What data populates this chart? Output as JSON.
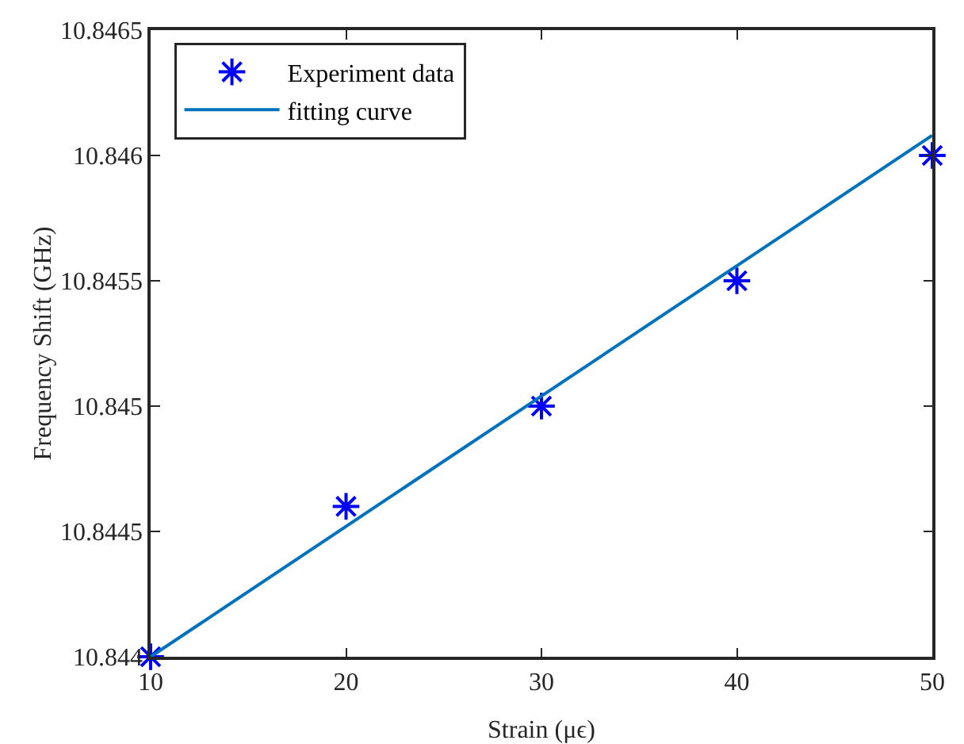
{
  "chart_data": {
    "type": "scatter",
    "xlabel": "Strain (μϵ)",
    "ylabel": "Frequency Shift (GHz)",
    "series": [
      {
        "name": "Experiment data",
        "type": "scatter",
        "color": "#0000ff",
        "marker": "cross",
        "x": [
          10,
          20,
          30,
          40,
          50
        ],
        "values": [
          10.844,
          10.8446,
          10.845,
          10.8455,
          10.846
        ]
      },
      {
        "name": "fitting curve",
        "type": "line",
        "color": "#0072bd",
        "marker": "none",
        "line_style": "solid",
        "x": [
          10,
          50
        ],
        "values": [
          10.844,
          10.84608
        ]
      }
    ],
    "xlim": [
      10,
      50
    ],
    "xticks": [
      10,
      20,
      30,
      40,
      50
    ],
    "ylim": [
      10.844,
      10.8465
    ],
    "yticks": [
      10.844,
      10.8445,
      10.845,
      10.8455,
      10.846,
      10.8465
    ],
    "grid": false,
    "legend": "top left"
  }
}
